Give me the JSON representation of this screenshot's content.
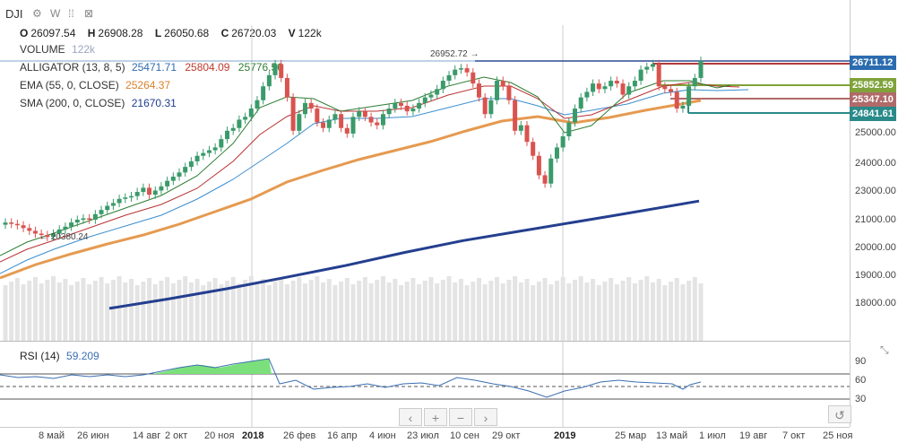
{
  "symbol": "DJI",
  "toolbar": {
    "settings_icon": "gear-icon",
    "w_label": "W",
    "compare_icon": "compare-icon"
  },
  "ohlc": {
    "o_label": "O",
    "o": "26097.54",
    "h_label": "H",
    "h": "26908.28",
    "l_label": "L",
    "l": "26050.68",
    "c_label": "C",
    "c": "26720.03",
    "v_label": "V",
    "v": "122k"
  },
  "indicators": {
    "volume": {
      "name": "VOLUME",
      "value": "122k"
    },
    "alligator": {
      "name": "ALLIGATOR (13, 8, 5)",
      "v1": "25471.71",
      "v2": "25804.09",
      "v3": "25776.56"
    },
    "ema": {
      "name": "EMA (55, 0, CLOSE)",
      "value": "25264.37"
    },
    "sma": {
      "name": "SMA (200, 0, CLOSE)",
      "value": "21670.31"
    },
    "rsi": {
      "name": "RSI (14)",
      "value": "59.209"
    }
  },
  "annotations": {
    "high": "26952.72 →",
    "low": "← 20380.24"
  },
  "price_boxes": [
    {
      "label": "26711.12",
      "color": "#2b6cb0"
    },
    {
      "label": "25852.59",
      "color": "#7fa33a"
    },
    {
      "label": "25347.10",
      "color": "#b06a6a"
    },
    {
      "label": "24841.61",
      "color": "#2a8a8a"
    }
  ],
  "nav": {
    "left": "‹",
    "plus": "+",
    "minus": "−",
    "right": "›",
    "reset_icon": "reset-icon"
  },
  "chart_data": {
    "type": "candlestick",
    "symbol": "DJI",
    "interval": "W",
    "y_ticks": [
      "25000.00",
      "24000.00",
      "23000.00",
      "22000.00",
      "21000.00",
      "20000.00",
      "19000.00",
      "18000.00"
    ],
    "ylim": [
      17000,
      27400
    ],
    "x_ticks": [
      "8 май",
      "26 июн",
      "14 авг",
      "2 окт",
      "20 ноя",
      "2018",
      "26 фев",
      "16 апр",
      "4 июн",
      "23 июл",
      "10 сен",
      "29 окт",
      "2019",
      "25 мар",
      "13 май",
      "1 июл",
      "19 авг",
      "7 окт",
      "25 ноя"
    ],
    "rsi_ticks": [
      "90",
      "60",
      "30"
    ],
    "rsi_levels": [
      70,
      50,
      30
    ],
    "sma_200": [
      [
        0,
        17810
      ],
      [
        0.1,
        18150
      ],
      [
        0.2,
        18520
      ],
      [
        0.3,
        18930
      ],
      [
        0.4,
        19350
      ],
      [
        0.5,
        19820
      ],
      [
        0.6,
        20250
      ],
      [
        0.7,
        20600
      ],
      [
        0.85,
        21130
      ],
      [
        1.0,
        21670
      ]
    ],
    "candles_close": [
      20900,
      20850,
      20800,
      20700,
      20600,
      20500,
      20450,
      20380,
      20500,
      20650,
      20750,
      20900,
      21000,
      21050,
      21000,
      21200,
      21350,
      21500,
      21600,
      21750,
      21800,
      21850,
      22000,
      22150,
      21900,
      22050,
      22200,
      22400,
      22550,
      22700,
      22900,
      23100,
      23300,
      23400,
      23500,
      23600,
      23900,
      24200,
      24300,
      24600,
      24700,
      25000,
      25300,
      25800,
      26200,
      26600,
      26100,
      25400,
      24200,
      24800,
      25200,
      25000,
      24500,
      24300,
      24600,
      24800,
      24300,
      24100,
      24700,
      24900,
      24700,
      24500,
      24400,
      24800,
      25000,
      25200,
      25100,
      24900,
      25000,
      25200,
      25400,
      25500,
      25700,
      26000,
      26200,
      26400,
      26450,
      26300,
      25900,
      25400,
      24800,
      25300,
      26000,
      25800,
      25300,
      24200,
      24400,
      23800,
      23300,
      22600,
      22300,
      23200,
      23600,
      24000,
      24500,
      25000,
      25400,
      25600,
      25900,
      25700,
      25800,
      26000,
      25900,
      25500,
      25800,
      26000,
      26400,
      26500,
      26600,
      25800,
      25700,
      25600,
      25000,
      25100,
      25800,
      26100,
      26720
    ]
  }
}
